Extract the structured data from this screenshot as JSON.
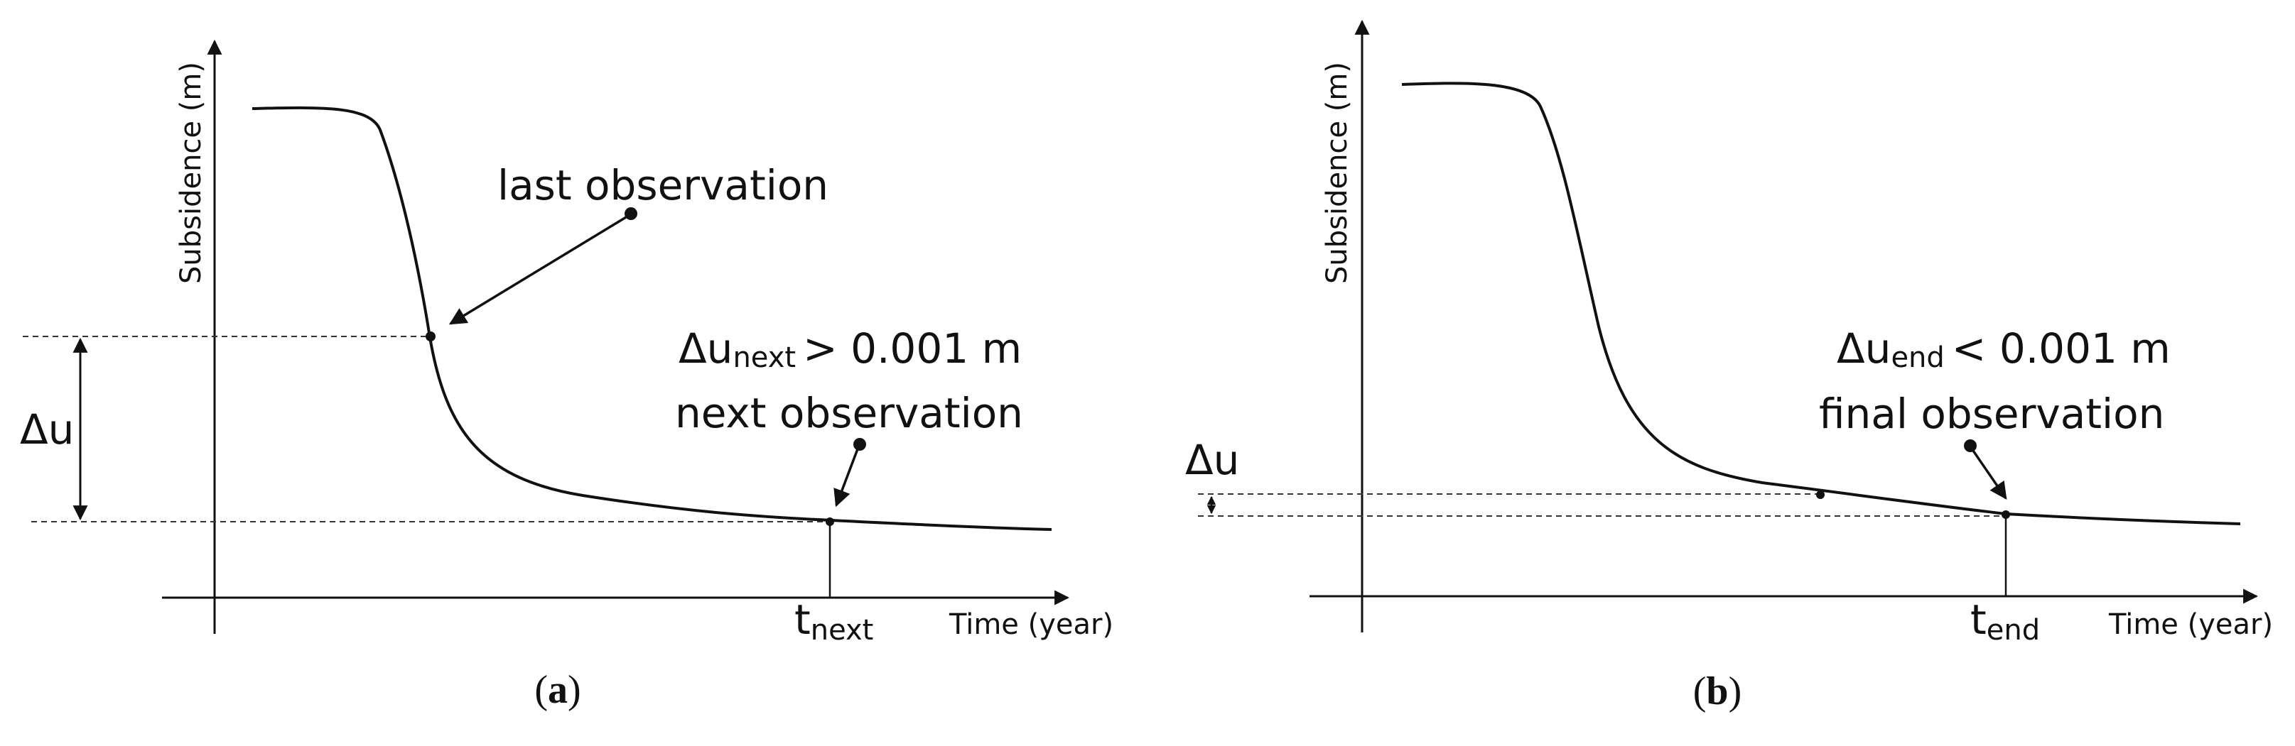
{
  "panels": [
    {
      "id": "a",
      "y_axis_label": "Subsidence (m)",
      "x_axis_label": "Time (year)",
      "delta_label": "Δu",
      "annotation_top": "last observation",
      "criterion": {
        "symbol": "Δu",
        "subscript": "next",
        "relation": "> 0.001 m"
      },
      "annotation_bottom": "next observation",
      "time_marker": {
        "symbol": "t",
        "subscript": "next"
      },
      "caption": {
        "open": "(",
        "letter": "a",
        "close": ")"
      }
    },
    {
      "id": "b",
      "y_axis_label": "Subsidence (m)",
      "x_axis_label": "Time (year)",
      "delta_label": "Δu",
      "criterion": {
        "symbol": "Δu",
        "subscript": "end",
        "relation": "< 0.001 m"
      },
      "annotation_bottom": "final observation",
      "time_marker": {
        "symbol": "t",
        "subscript": "end"
      },
      "caption": {
        "open": "(",
        "letter": "b",
        "close": ")"
      }
    }
  ],
  "colors": {
    "line": "#111111",
    "background": "#ffffff"
  }
}
